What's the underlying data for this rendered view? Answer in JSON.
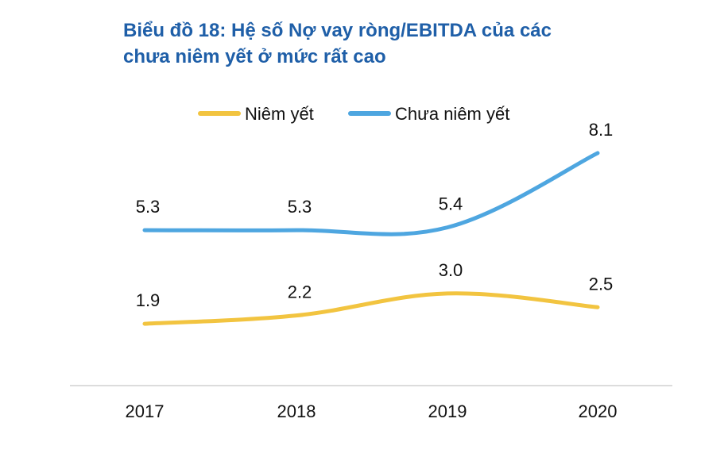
{
  "title": {
    "line1": "Biểu đồ 18: Hệ số Nợ vay ròng/EBITDA của các",
    "line2": "chưa niêm yết ở mức rất cao"
  },
  "colors": {
    "title": "#1f5fa8",
    "listed": "#f2c440",
    "unlisted": "#4ea6e0",
    "axis": "#d0d0d0"
  },
  "chart_data": {
    "type": "line",
    "title": "Biểu đồ 18: Hệ số Nợ vay ròng/EBITDA của các chưa niêm yết ở mức rất cao",
    "categories": [
      "2017",
      "2018",
      "2019",
      "2020"
    ],
    "series": [
      {
        "name": "Niêm yết",
        "values": [
          1.9,
          2.2,
          3.0,
          2.5
        ],
        "labels": [
          "1.9",
          "2.2",
          "3.0",
          "2.5"
        ]
      },
      {
        "name": "Chưa niêm yết",
        "values": [
          5.3,
          5.3,
          5.4,
          8.1
        ],
        "labels": [
          "5.3",
          "5.3",
          "5.4",
          "8.1"
        ]
      }
    ],
    "legend": "top-center",
    "grid": false,
    "xlabel": "",
    "ylabel": ""
  }
}
